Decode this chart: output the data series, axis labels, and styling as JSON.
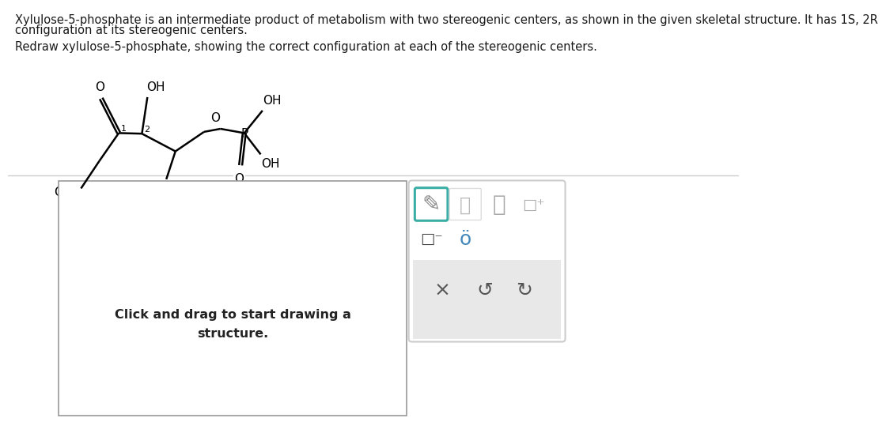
{
  "bg_color": "#ffffff",
  "text_color": "#1a1a1a",
  "molecule_color": "#000000",
  "title_line1": "Xylulose-5-phosphate is an intermediate product of metabolism with two stereogenic centers, as shown in the given skeletal structure. It has 1S, 2R",
  "title_line2": "configuration at its stereogenic centers.",
  "subtitle": "Redraw xylulose-5-phosphate, showing the correct configuration at each of the stereogenic centers.",
  "click_drag_text": "Click and drag to start drawing a\nstructure.",
  "teal_color": "#3aada4",
  "icon_gray": "#aaaaaa",
  "divider_color": "#cccccc",
  "box_border_color": "#999999",
  "toolbar_border_color": "#cccccc",
  "gray_bar_color": "#e8e8e8"
}
